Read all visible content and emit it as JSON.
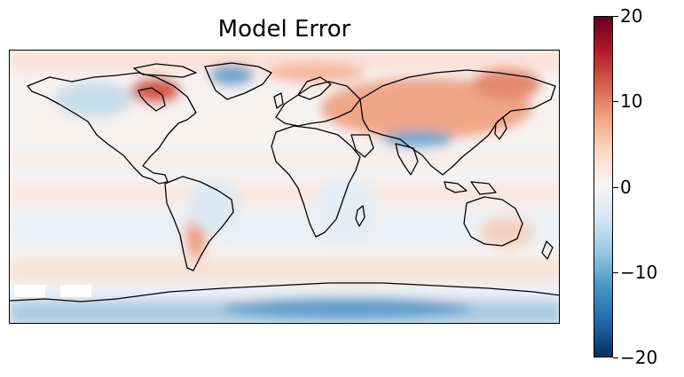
{
  "title": "Model Error",
  "colorbar": {
    "colormap": "RdBu_r",
    "vmin": -20,
    "vmax": 20,
    "ticks": [
      {
        "value": 20,
        "label": "20"
      },
      {
        "value": 10,
        "label": "10"
      },
      {
        "value": 0,
        "label": "0"
      },
      {
        "value": -10,
        "label": "−10"
      },
      {
        "value": -20,
        "label": "−20"
      }
    ]
  },
  "chart_data": {
    "type": "heatmap",
    "projection": "PlateCarree",
    "x_range": [
      -180,
      180
    ],
    "y_range": [
      -90,
      90
    ],
    "regions": [
      {
        "name": "arctic-siberia",
        "lon": 100,
        "lat": 62,
        "value": 9
      },
      {
        "name": "north-canada",
        "lon": -95,
        "lat": 62,
        "value": 13
      },
      {
        "name": "greenland-east",
        "lon": -38,
        "lat": 72,
        "value": -8
      },
      {
        "name": "tibet",
        "lon": 90,
        "lat": 33,
        "value": -9
      },
      {
        "name": "andes",
        "lon": -68,
        "lat": -30,
        "value": 7
      },
      {
        "name": "antarctica",
        "lon": 30,
        "lat": -82,
        "value": -11
      },
      {
        "name": "southern-ocean",
        "lon": -40,
        "lat": -62,
        "value": 5
      },
      {
        "name": "australia",
        "lon": 135,
        "lat": -25,
        "value": 3
      }
    ]
  }
}
